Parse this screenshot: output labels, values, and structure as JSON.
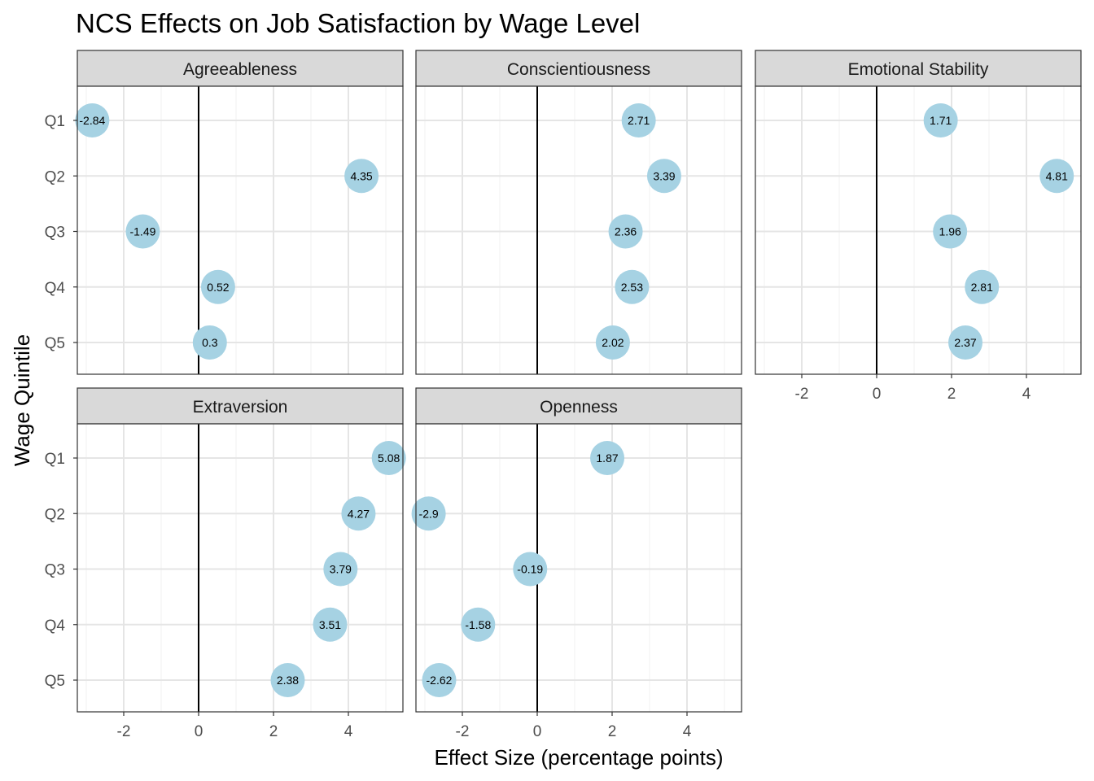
{
  "chart_data": {
    "type": "scatter",
    "title": "NCS Effects on Job Satisfaction by Wage Level",
    "xlabel": "Effect Size (percentage points)",
    "ylabel": "Wage Quintile",
    "categories": [
      "Q1",
      "Q2",
      "Q3",
      "Q4",
      "Q5"
    ],
    "xlim": [
      -3.25,
      5.45
    ],
    "xticks": [
      -2,
      0,
      2,
      4
    ],
    "reference_line": 0,
    "grid": true,
    "point_color": "#a6d2e3",
    "panels": [
      {
        "name": "Agreeableness",
        "values": [
          -2.84,
          4.35,
          -1.49,
          0.52,
          0.3
        ],
        "labels": [
          "-2.84",
          "4.35",
          "-1.49",
          "0.52",
          "0.3"
        ]
      },
      {
        "name": "Conscientiousness",
        "values": [
          2.71,
          3.39,
          2.36,
          2.53,
          2.02
        ],
        "labels": [
          "2.71",
          "3.39",
          "2.36",
          "2.53",
          "2.02"
        ]
      },
      {
        "name": "Emotional Stability",
        "values": [
          1.71,
          4.81,
          1.96,
          2.81,
          2.37
        ],
        "labels": [
          "1.71",
          "4.81",
          "1.96",
          "2.81",
          "2.37"
        ]
      },
      {
        "name": "Extraversion",
        "values": [
          5.08,
          4.27,
          3.79,
          3.51,
          2.38
        ],
        "labels": [
          "5.08",
          "4.27",
          "3.79",
          "3.51",
          "2.38"
        ]
      },
      {
        "name": "Openness",
        "values": [
          1.87,
          -2.9,
          -0.19,
          -1.58,
          -2.62
        ],
        "labels": [
          "1.87",
          "-2.9",
          "-0.19",
          "-1.58",
          "-2.62"
        ]
      }
    ]
  }
}
